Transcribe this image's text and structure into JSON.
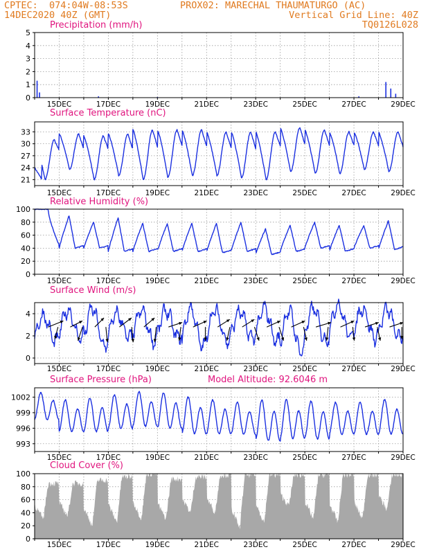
{
  "header": {
    "line1_left": "CPTEC:  074:04W-08:53S",
    "line1_mid": "PROX02: MARECHAL THAUMATURGO (AC)",
    "line2_left": "14DEC2020 40Z (GMT)",
    "line2_right": "Vertical Grid Line: 40Z",
    "line3_right": "TQ0126L028"
  },
  "colors": {
    "header": "#e07a1f",
    "title": "#e0147e",
    "line": "#1a2fe0",
    "cloud": "#a8a8a8"
  },
  "chart_data": [
    {
      "type": "bar",
      "title": "Precipitation (mm/h)",
      "xticks": [
        "15DEC",
        "17DEC",
        "19DEC",
        "21DEC",
        "23DEC",
        "25DEC",
        "27DEC",
        "29DEC"
      ],
      "ylim": [
        0,
        5
      ],
      "yticks": [
        "0",
        "1",
        "2",
        "3",
        "4",
        "5"
      ],
      "grid": true,
      "events": [
        [
          0.1,
          1.3
        ],
        [
          0.2,
          0.4
        ],
        [
          2.6,
          0.1
        ],
        [
          5.0,
          0.05
        ],
        [
          13.2,
          0.1
        ],
        [
          14.3,
          1.2
        ],
        [
          14.5,
          0.7
        ],
        [
          14.7,
          0.3
        ]
      ]
    },
    {
      "type": "line",
      "title": "Surface Temperature (nC)",
      "xticks": [
        "15DEC",
        "17DEC",
        "19DEC",
        "21DEC",
        "23DEC",
        "25DEC",
        "27DEC",
        "29DEC"
      ],
      "ylim": [
        19.5,
        35.5
      ],
      "yticks": [
        "21",
        "24",
        "27",
        "30",
        "33"
      ],
      "ytick_values": [
        21,
        24,
        27,
        30,
        33
      ],
      "grid": true,
      "min_temps": [
        21.0,
        23.5,
        21.0,
        22.0,
        21.0,
        21.5,
        22.0,
        22.0,
        21.5,
        21.0,
        23.0,
        22.5,
        22.5,
        23.5,
        23.0,
        22.5
      ],
      "max_temps": [
        31.0,
        32.5,
        32.0,
        32.5,
        33.5,
        33.5,
        33.5,
        33.0,
        33.0,
        33.0,
        34.0,
        33.5,
        33.0,
        33.0,
        33.0,
        31.5
      ],
      "start_value": 24.0,
      "end_value": 30.5
    },
    {
      "type": "line",
      "title": "Relative Humidity (%)",
      "xticks": [
        "15DEC",
        "17DEC",
        "19DEC",
        "21DEC",
        "23DEC",
        "25DEC",
        "27DEC",
        "29DEC"
      ],
      "ylim": [
        0,
        100
      ],
      "yticks": [
        "0",
        "20",
        "40",
        "60",
        "80",
        "100"
      ],
      "ytick_values": [
        0,
        20,
        40,
        60,
        80,
        100
      ],
      "grid": true,
      "min_rh": [
        100,
        45,
        40,
        40,
        35,
        35,
        35,
        35,
        33,
        35,
        30,
        35,
        40,
        35,
        40,
        38,
        45
      ],
      "max_rh": [
        100,
        88,
        90,
        80,
        87,
        78,
        78,
        78,
        78,
        80,
        70,
        75,
        80,
        75,
        75,
        82,
        85
      ],
      "end_value": 48
    },
    {
      "type": "line",
      "title": "Surface Wind (m/s)",
      "xticks": [
        "15DEC",
        "17DEC",
        "19DEC",
        "21DEC",
        "23DEC",
        "25DEC",
        "27DEC",
        "29DEC"
      ],
      "ylim": [
        -0.5,
        5.0
      ],
      "yticks": [
        "0",
        "2",
        "4"
      ],
      "ytick_values": [
        0,
        2,
        4
      ],
      "grid": true,
      "speed_min": [
        1.5,
        1.8,
        1.0,
        1.8,
        1.5,
        1.8,
        1.0,
        1.5,
        1.8,
        1.5,
        0.5,
        1.5,
        2.0,
        1.8,
        1.8,
        2.2
      ],
      "speed_max": [
        3.8,
        4.3,
        4.5,
        4.0,
        4.3,
        4.3,
        4.5,
        4.3,
        4.2,
        4.5,
        4.3,
        4.5,
        4.8,
        4.5,
        4.4,
        3.5
      ],
      "arrows": [
        {
          "t": 0.55,
          "u": 1.0,
          "v": 0.4
        },
        {
          "t": 0.95,
          "u": -0.2,
          "v": -0.8
        },
        {
          "t": 1.45,
          "u": 0.8,
          "v": 0.4
        },
        {
          "t": 1.95,
          "u": -0.3,
          "v": -0.9
        },
        {
          "t": 2.45,
          "u": 0.6,
          "v": 0.6
        },
        {
          "t": 2.9,
          "u": 0.1,
          "v": -1.0
        },
        {
          "t": 3.45,
          "u": 0.8,
          "v": 0.6
        },
        {
          "t": 3.95,
          "u": 0.1,
          "v": -1.0
        },
        {
          "t": 4.45,
          "u": 0.7,
          "v": 0.6
        },
        {
          "t": 4.95,
          "u": -0.1,
          "v": -1.0
        },
        {
          "t": 5.45,
          "u": 0.9,
          "v": 0.3
        },
        {
          "t": 5.95,
          "u": -0.1,
          "v": -0.9
        },
        {
          "t": 6.45,
          "u": 0.9,
          "v": 0.4
        },
        {
          "t": 6.95,
          "u": 0.0,
          "v": -0.9
        },
        {
          "t": 7.45,
          "u": 0.8,
          "v": 0.5
        },
        {
          "t": 7.95,
          "u": -0.2,
          "v": -0.9
        },
        {
          "t": 8.45,
          "u": 0.8,
          "v": 0.5
        },
        {
          "t": 8.95,
          "u": 0.3,
          "v": -0.9
        },
        {
          "t": 9.45,
          "u": 0.9,
          "v": 0.4
        },
        {
          "t": 9.95,
          "u": 0.3,
          "v": -0.9
        },
        {
          "t": 10.45,
          "u": 0.9,
          "v": 0.4
        },
        {
          "t": 10.95,
          "u": 0.2,
          "v": -0.9
        },
        {
          "t": 11.45,
          "u": 1.0,
          "v": 0.3
        },
        {
          "t": 11.95,
          "u": -0.1,
          "v": -0.9
        },
        {
          "t": 12.45,
          "u": 0.9,
          "v": 0.4
        },
        {
          "t": 12.95,
          "u": 0.1,
          "v": -0.9
        },
        {
          "t": 13.45,
          "u": 0.9,
          "v": 0.3
        },
        {
          "t": 13.95,
          "u": 0.2,
          "v": -0.9
        },
        {
          "t": 14.45,
          "u": 0.9,
          "v": 0.3
        },
        {
          "t": 14.95,
          "u": 0.0,
          "v": -0.8
        }
      ]
    },
    {
      "type": "line",
      "title": "Surface Pressure (hPa)",
      "annotation": "Model Altitude: 92.6046 m",
      "xticks": [
        "15DEC",
        "17DEC",
        "19DEC",
        "21DEC",
        "23DEC",
        "25DEC",
        "27DEC",
        "29DEC"
      ],
      "ylim": [
        991.5,
        1003.8
      ],
      "yticks": [
        "993",
        "996",
        "999",
        "1002"
      ],
      "ytick_values": [
        993,
        996,
        999,
        1002
      ],
      "grid": true,
      "start_value": 1001,
      "peaks": [
        1002.8,
        1001.5,
        1001.8,
        1002.5,
        1003.0,
        1002.8,
        1002.0,
        1001.5,
        1001.0,
        1001.5,
        1001.5,
        1001.2,
        1001.0,
        1001.0,
        1001.5,
        1002.5
      ],
      "troughs": [
        997.0,
        994.5,
        994.5,
        995.0,
        995.5,
        995.0,
        994.0,
        994.0,
        994.0,
        992.5,
        993.0,
        993.0,
        994.0,
        994.0,
        994.0,
        995.5
      ]
    },
    {
      "type": "area",
      "title": "Cloud Cover (%)",
      "xticks": [
        "15DEC",
        "17DEC",
        "19DEC",
        "21DEC",
        "23DEC",
        "25DEC",
        "27DEC",
        "29DEC"
      ],
      "ylim": [
        0,
        100
      ],
      "yticks": [
        "0",
        "20",
        "40",
        "60",
        "80",
        "100"
      ],
      "ytick_values": [
        0,
        20,
        40,
        60,
        80,
        100
      ],
      "grid": true,
      "daily_low": [
        30,
        35,
        20,
        25,
        30,
        30,
        40,
        40,
        15,
        25,
        50,
        30,
        25,
        30,
        45,
        50
      ],
      "daily_high": [
        85,
        85,
        90,
        95,
        100,
        92,
        95,
        98,
        98,
        98,
        98,
        98,
        98,
        98,
        98,
        98
      ]
    }
  ]
}
